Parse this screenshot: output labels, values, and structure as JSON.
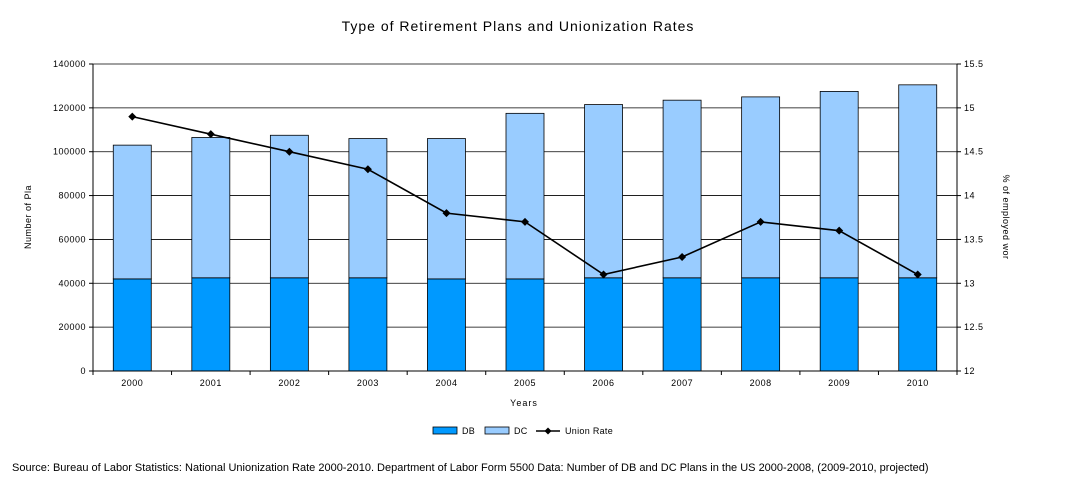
{
  "chart_data": {
    "type": "bar",
    "title": "Type of Retirement Plans and Unionization Rates",
    "xlabel": "Years",
    "ylabel": "Number of Pla",
    "y2label": "% of employed wor",
    "categories": [
      "2000",
      "2001",
      "2002",
      "2003",
      "2004",
      "2005",
      "2006",
      "2007",
      "2008",
      "2009",
      "2010"
    ],
    "ylim": [
      0,
      140000
    ],
    "y2lim": [
      12,
      15.5
    ],
    "yticks": [
      "0",
      "20000",
      "40000",
      "60000",
      "80000",
      "100000",
      "120000",
      "140000"
    ],
    "y2ticks": [
      "12",
      "12.5",
      "13",
      "13.5",
      "14",
      "14.5",
      "15",
      "15.5"
    ],
    "stacked": true,
    "series": [
      {
        "name": "DB",
        "type": "bar",
        "axis": "left",
        "color": "#0099ff",
        "values": [
          42000,
          42500,
          42500,
          42500,
          42000,
          42000,
          42500,
          42500,
          42500,
          42500,
          42500
        ]
      },
      {
        "name": "DC",
        "type": "bar",
        "axis": "left",
        "color": "#99ccff",
        "values": [
          61000,
          64000,
          65000,
          63500,
          64000,
          75500,
          79000,
          81000,
          82500,
          85000,
          88000
        ]
      },
      {
        "name": "Union Rate",
        "type": "line",
        "axis": "right",
        "color": "#000000",
        "marker": "diamond",
        "values": [
          14.9,
          14.7,
          14.5,
          14.3,
          13.8,
          13.7,
          13.1,
          13.3,
          13.7,
          13.6,
          13.1
        ]
      }
    ],
    "grid": true,
    "legend_position": "bottom"
  },
  "source": "Source: Bureau of Labor Statistics: National Unionization Rate 2000-2010. Department of Labor Form 5500 Data: Number of DB and DC Plans in the US 2000-2008, (2009-2010, projected)"
}
